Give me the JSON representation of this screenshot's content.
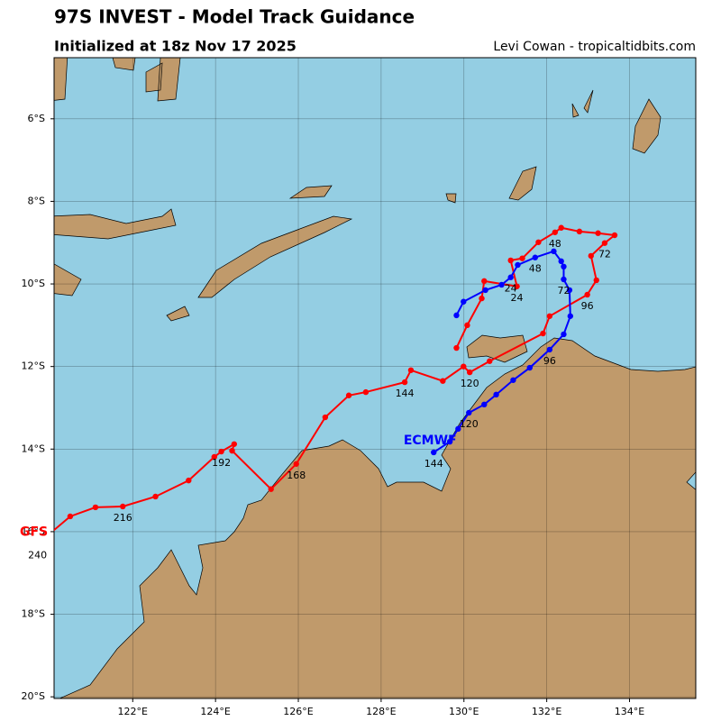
{
  "chart_data": {
    "type": "track",
    "title": "97S INVEST - Model Track Guidance",
    "subtitle": "Initialized at 18z Nov 17 2025",
    "credit": "Levi Cowan - tropicaltidbits.com",
    "xlim": [
      120.1,
      135.6
    ],
    "ylim": [
      -20.04,
      -4.52
    ],
    "xticks": [
      {
        "value": 122,
        "label": "122°E"
      },
      {
        "value": 124,
        "label": "124°E"
      },
      {
        "value": 126,
        "label": "126°E"
      },
      {
        "value": 128,
        "label": "128°E"
      },
      {
        "value": 130,
        "label": "130°E"
      },
      {
        "value": 132,
        "label": "132°E"
      },
      {
        "value": 134,
        "label": "134°E"
      }
    ],
    "yticks": [
      {
        "value": -6,
        "label": "6°S"
      },
      {
        "value": -8,
        "label": "8°S"
      },
      {
        "value": -10,
        "label": "10°S"
      },
      {
        "value": -12,
        "label": "12°S"
      },
      {
        "value": -14,
        "label": "14°S"
      },
      {
        "value": -16,
        "label": "16°S"
      },
      {
        "value": -18,
        "label": "18°S"
      },
      {
        "value": -20,
        "label": "20°S"
      }
    ],
    "grid": true,
    "series": [
      {
        "name": "GFS",
        "color": "#ff0000",
        "lon": [
          129.82,
          130.08,
          130.43,
          130.49,
          131.28,
          131.13,
          131.41,
          131.8,
          132.2,
          132.35,
          132.79,
          133.24,
          133.64,
          133.4,
          133.07,
          133.2,
          132.98,
          132.07,
          131.91,
          130.62,
          130.14,
          129.99,
          129.49,
          128.72,
          128.57,
          127.63,
          127.22,
          126.65,
          125.95,
          125.34,
          124.4,
          124.45,
          124.14,
          123.97,
          123.35,
          122.55,
          121.76,
          121.1,
          120.49,
          119.7
        ],
        "lat": [
          -11.55,
          -11.0,
          -10.35,
          -9.93,
          -10.06,
          -9.43,
          -9.38,
          -8.99,
          -8.75,
          -8.64,
          -8.73,
          -8.77,
          -8.82,
          -9.01,
          -9.32,
          -9.91,
          -10.26,
          -10.78,
          -11.2,
          -11.87,
          -12.14,
          -12.0,
          -12.35,
          -12.09,
          -12.38,
          -12.62,
          -12.7,
          -13.23,
          -14.36,
          -14.97,
          -14.04,
          -13.88,
          -14.06,
          -14.19,
          -14.76,
          -15.15,
          -15.39,
          -15.41,
          -15.63,
          -16.3
        ],
        "labels": [
          null,
          null,
          null,
          null,
          "24",
          null,
          null,
          null,
          "48",
          null,
          null,
          null,
          null,
          "72",
          null,
          null,
          "96",
          null,
          null,
          null,
          "120",
          null,
          null,
          null,
          "144",
          null,
          null,
          null,
          "168",
          null,
          null,
          null,
          "192",
          null,
          null,
          null,
          "216",
          null,
          null,
          "240"
        ]
      },
      {
        "name": "ECMWF",
        "color": "#0000ff",
        "lon": [
          129.82,
          129.99,
          130.52,
          130.91,
          131.13,
          131.3,
          131.72,
          132.17,
          132.35,
          132.41,
          132.41,
          132.55,
          132.57,
          132.41,
          132.07,
          131.59,
          131.19,
          130.78,
          130.49,
          130.12,
          129.86,
          129.66,
          129.27
        ],
        "lat": [
          -10.76,
          -10.43,
          -10.15,
          -10.02,
          -9.84,
          -9.54,
          -9.36,
          -9.21,
          -9.45,
          -9.58,
          -9.89,
          -10.15,
          -10.78,
          -11.22,
          -11.59,
          -12.03,
          -12.33,
          -12.68,
          -12.92,
          -13.12,
          -13.51,
          -13.82,
          -14.08
        ],
        "labels": [
          null,
          null,
          null,
          null,
          "24",
          null,
          "48",
          null,
          null,
          null,
          "72",
          null,
          null,
          null,
          "96",
          null,
          null,
          null,
          null,
          "120",
          null,
          null,
          "144"
        ]
      }
    ]
  }
}
